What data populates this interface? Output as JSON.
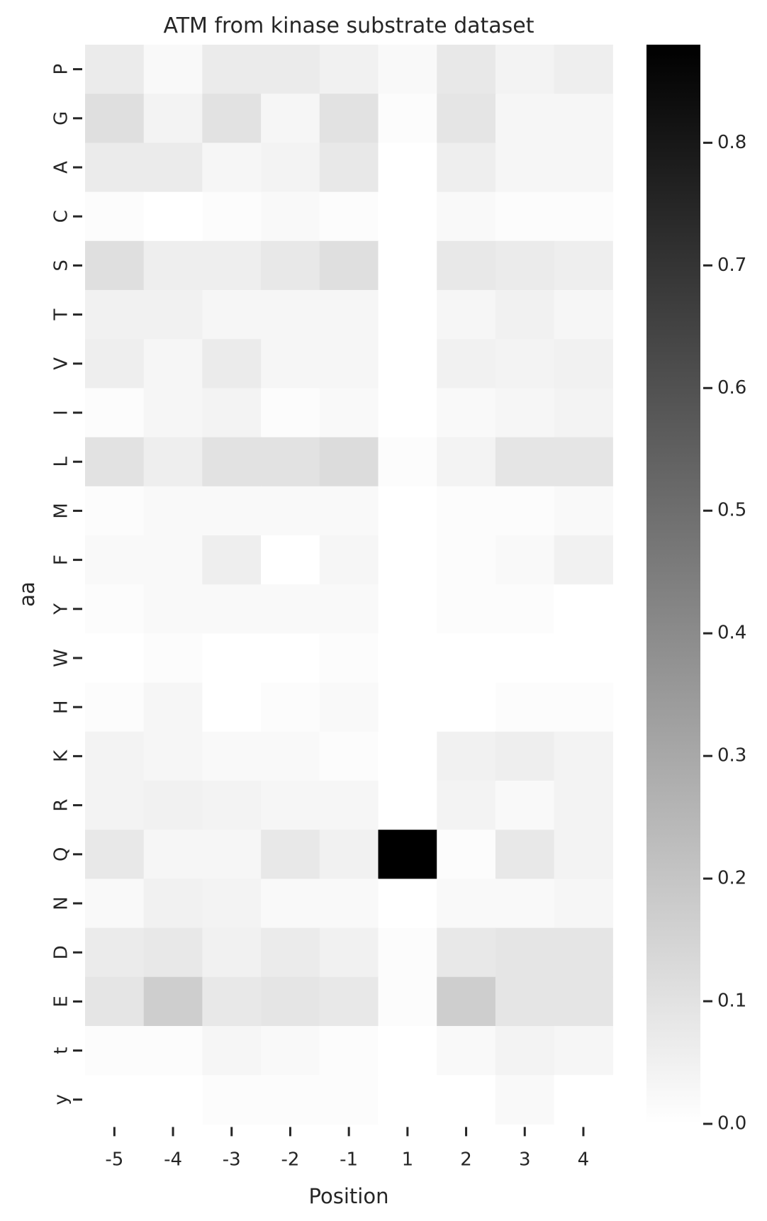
{
  "chart_data": {
    "type": "heatmap",
    "title": "ATM from kinase substrate dataset",
    "xlabel": "Position",
    "ylabel": "aa",
    "x_categories": [
      "-5",
      "-4",
      "-3",
      "-2",
      "-1",
      "1",
      "2",
      "3",
      "4"
    ],
    "y_categories": [
      "P",
      "G",
      "A",
      "C",
      "S",
      "T",
      "V",
      "I",
      "L",
      "M",
      "F",
      "Y",
      "W",
      "H",
      "K",
      "R",
      "Q",
      "N",
      "D",
      "E",
      "t",
      "y"
    ],
    "values": [
      [
        0.07,
        0.02,
        0.07,
        0.07,
        0.05,
        0.02,
        0.08,
        0.04,
        0.06
      ],
      [
        0.11,
        0.04,
        0.1,
        0.03,
        0.1,
        0.01,
        0.09,
        0.03,
        0.03
      ],
      [
        0.07,
        0.07,
        0.03,
        0.04,
        0.08,
        0.0,
        0.06,
        0.03,
        0.03
      ],
      [
        0.01,
        0.0,
        0.01,
        0.02,
        0.01,
        0.0,
        0.02,
        0.01,
        0.01
      ],
      [
        0.11,
        0.06,
        0.06,
        0.08,
        0.11,
        0.0,
        0.08,
        0.07,
        0.06
      ],
      [
        0.05,
        0.05,
        0.03,
        0.03,
        0.03,
        0.0,
        0.03,
        0.05,
        0.03
      ],
      [
        0.06,
        0.03,
        0.07,
        0.03,
        0.03,
        0.0,
        0.05,
        0.04,
        0.05
      ],
      [
        0.01,
        0.03,
        0.04,
        0.01,
        0.02,
        0.0,
        0.02,
        0.03,
        0.04
      ],
      [
        0.1,
        0.06,
        0.1,
        0.1,
        0.12,
        0.01,
        0.04,
        0.09,
        0.09
      ],
      [
        0.01,
        0.02,
        0.02,
        0.02,
        0.02,
        0.0,
        0.01,
        0.01,
        0.02
      ],
      [
        0.02,
        0.02,
        0.06,
        0.0,
        0.03,
        0.0,
        0.01,
        0.02,
        0.05
      ],
      [
        0.01,
        0.02,
        0.02,
        0.02,
        0.02,
        0.0,
        0.01,
        0.01,
        0.0
      ],
      [
        0.0,
        0.01,
        0.0,
        0.0,
        0.01,
        0.0,
        0.0,
        0.0,
        0.0
      ],
      [
        0.01,
        0.03,
        0.0,
        0.01,
        0.02,
        0.0,
        0.0,
        0.01,
        0.01
      ],
      [
        0.04,
        0.03,
        0.02,
        0.02,
        0.01,
        0.0,
        0.05,
        0.06,
        0.04
      ],
      [
        0.04,
        0.05,
        0.04,
        0.03,
        0.03,
        0.0,
        0.04,
        0.02,
        0.04
      ],
      [
        0.08,
        0.03,
        0.03,
        0.08,
        0.05,
        0.88,
        0.01,
        0.08,
        0.04
      ],
      [
        0.02,
        0.05,
        0.04,
        0.02,
        0.02,
        0.0,
        0.02,
        0.02,
        0.03
      ],
      [
        0.07,
        0.08,
        0.05,
        0.07,
        0.05,
        0.01,
        0.08,
        0.09,
        0.09
      ],
      [
        0.09,
        0.17,
        0.08,
        0.09,
        0.08,
        0.01,
        0.17,
        0.09,
        0.09
      ],
      [
        0.01,
        0.01,
        0.03,
        0.02,
        0.01,
        0.0,
        0.02,
        0.04,
        0.03
      ],
      [
        0.0,
        0.0,
        0.01,
        0.01,
        0.01,
        0.0,
        0.0,
        0.02,
        0.0
      ]
    ],
    "colormap": [
      "#ffffff",
      "#000000"
    ],
    "colorbar": {
      "range": [
        0.0,
        0.88
      ],
      "ticks": [
        0.0,
        0.1,
        0.2,
        0.3,
        0.4,
        0.5,
        0.6,
        0.7,
        0.8
      ],
      "tick_labels": [
        "0.0",
        "0.1",
        "0.2",
        "0.3",
        "0.4",
        "0.5",
        "0.6",
        "0.7",
        "0.8"
      ]
    },
    "grid": false
  }
}
